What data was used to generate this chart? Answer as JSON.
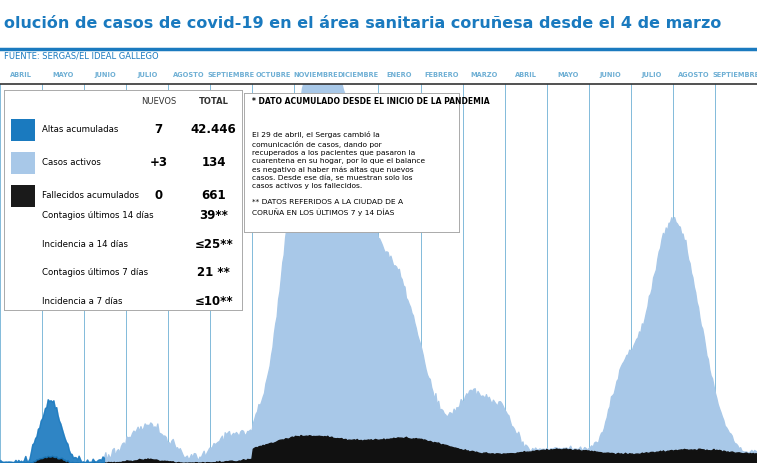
{
  "title": "olución de casos de covid-19 en el área sanitaria coruñesa desde el 4 de marzo",
  "source": "FUENTE: SERGAS/EL IDEAL GALLEGO",
  "title_color": "#1a7abf",
  "source_color": "#1a7abf",
  "months": [
    "ABRIL",
    "MAYO",
    "JUNIO",
    "JULIO",
    "AGOSTO",
    "SEPTIEMBRE",
    "OCTUBRE",
    "NOVIEMBRE",
    "DICIEMBRE",
    "ENERO",
    "FEBRERO",
    "MARZO",
    "ABRIL",
    "MAYO",
    "JUNIO",
    "JULIO",
    "AGOSTO",
    "SEPTIEMBRE"
  ],
  "legend_items": [
    {
      "label": "Altas acumuladas",
      "color": "#1a7abf",
      "nuevos": "7",
      "total": "42.446"
    },
    {
      "label": "Casos activos",
      "color": "#a8c8e8",
      "nuevos": "+3",
      "total": "134"
    },
    {
      "label": "Fallecidos acumulados",
      "color": "#1a1a1a",
      "nuevos": "0",
      "total": "661"
    }
  ],
  "extra_rows": [
    {
      "label": "Contagios últimos 14 días",
      "total": "39**"
    },
    {
      "label": "Incidencia a 14 días",
      "total": "≤25**"
    },
    {
      "label": "Contagios últimos 7 días",
      "total": "21 **"
    },
    {
      "label": "Incidencia a 7 días",
      "total": "≤10**"
    }
  ],
  "note_box_title": "* DATO ACUMULADO DESDE EL INICIO DE LA PANDEMIA",
  "note_box_body": "El 29 de abril, el Sergas cambió la\ncomunicación de casos, dando por\nrecuperados a los pacientes que pasaron la\ncuarentena en su hogar, por lo que el balance\nes negativo al haber más altas que nuevos\ncasos. Desde ese día, se muestran solo los\ncasos activos y los fallecidos.\n\n** DATOS REFERIDOS A LA CIUDAD DE A\nCORUÑA EN LOS ÚLTIMOS 7 y 14 DÍAS",
  "chart_bg": "#ffffff",
  "grid_color": "#6eafd4",
  "area_color_active": "#a8c8e8",
  "area_color_deaths": "#111111",
  "wave1_active": 120,
  "wave2_active": 80,
  "wave3_active": 700,
  "wave4_active": 280,
  "wave5_active": 220,
  "wave6_active": 110,
  "wave7_active": 500
}
